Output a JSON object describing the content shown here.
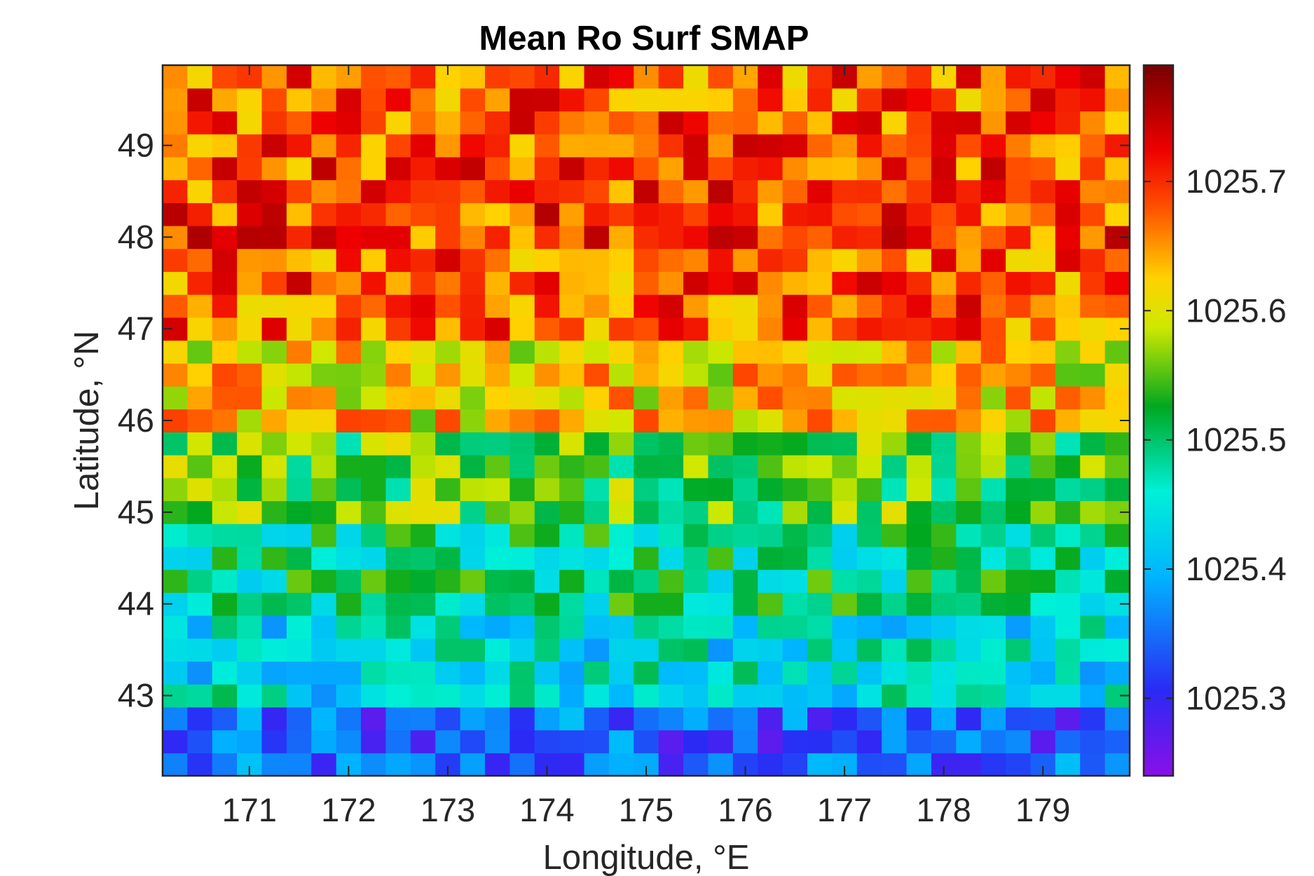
{
  "chart_data": {
    "type": "heatmap",
    "title": "Mean Ro Surf SMAP",
    "xlabel": "Longitude, °E",
    "ylabel": "Latitude, °N",
    "xlim": [
      170.125,
      179.875
    ],
    "ylim": [
      42.125,
      49.875
    ],
    "x_ticks": [
      "171",
      "172",
      "173",
      "174",
      "175",
      "176",
      "177",
      "178",
      "179"
    ],
    "y_ticks": [
      "43",
      "44",
      "45",
      "46",
      "47",
      "48",
      "49"
    ],
    "colorbar": {
      "ticks": [
        "1025.3",
        "1025.4",
        "1025.5",
        "1025.6",
        "1025.7"
      ],
      "range": [
        1025.24,
        1025.79
      ],
      "colormap": "jet-like (purple-blue-cyan-green-yellow-red-darkred)"
    },
    "grid": false,
    "grid_resolution_deg": 0.25,
    "lat_bands": [
      {
        "lat_range": [
          49.0,
          49.875
        ],
        "mean_value": 1025.68
      },
      {
        "lat_range": [
          48.0,
          49.0
        ],
        "mean_value": 1025.69
      },
      {
        "lat_range": [
          47.0,
          48.0
        ],
        "mean_value": 1025.68
      },
      {
        "lat_range": [
          46.0,
          47.0
        ],
        "mean_value": 1025.62
      },
      {
        "lat_range": [
          45.0,
          46.0
        ],
        "mean_value": 1025.54
      },
      {
        "lat_range": [
          44.0,
          45.0
        ],
        "mean_value": 1025.49
      },
      {
        "lat_range": [
          43.0,
          44.0
        ],
        "mean_value": 1025.44
      },
      {
        "lat_range": [
          42.125,
          43.0
        ],
        "mean_value": 1025.34
      }
    ]
  }
}
